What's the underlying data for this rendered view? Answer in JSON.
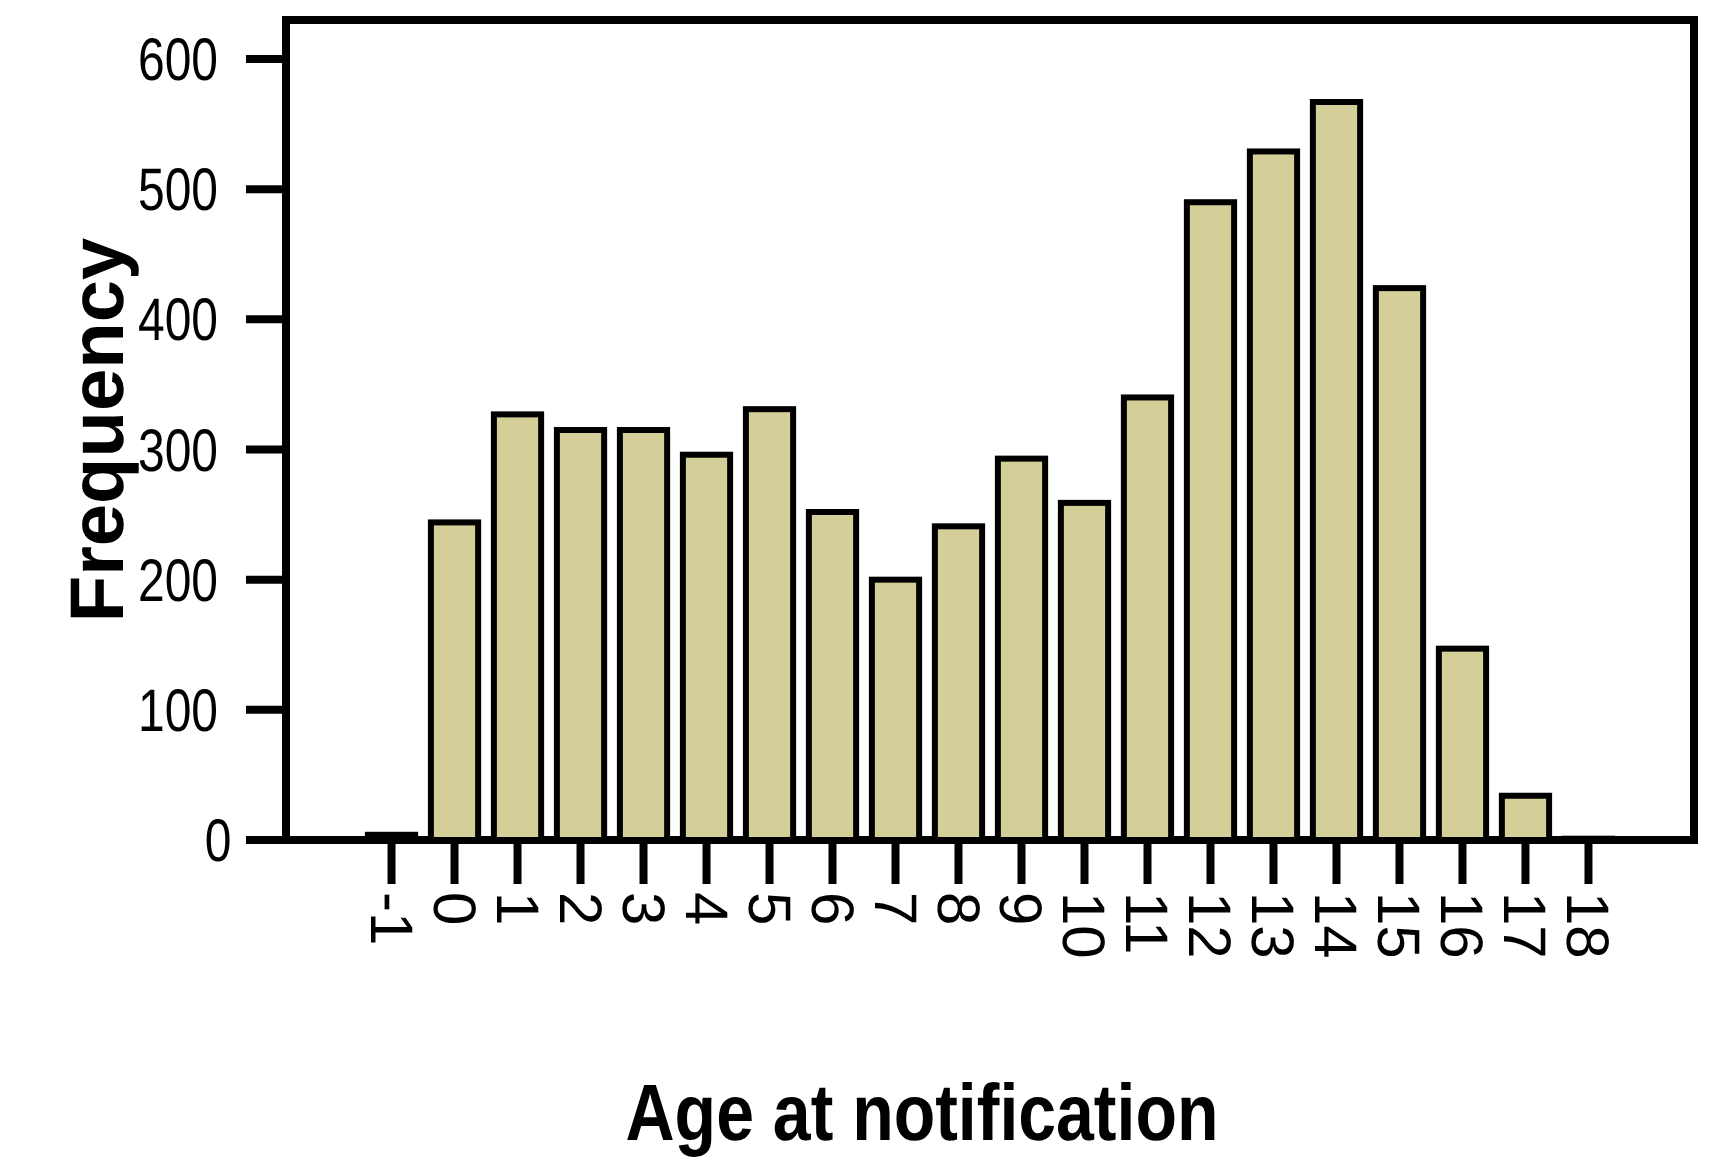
{
  "chart_data": {
    "type": "bar",
    "xlabel": "Age at notification",
    "ylabel": "Frequency",
    "categories": [
      "-1",
      "0",
      "1",
      "2",
      "3",
      "4",
      "5",
      "6",
      "7",
      "8",
      "9",
      "10",
      "11",
      "12",
      "13",
      "14",
      "15",
      "16",
      "17",
      "18"
    ],
    "values": [
      4,
      244,
      327,
      315,
      315,
      296,
      331,
      252,
      200,
      241,
      293,
      259,
      340,
      490,
      529,
      567,
      424,
      147,
      34,
      1
    ],
    "color": "#d4cf98",
    "ylim": [
      0,
      630
    ],
    "yticks": [
      0,
      100,
      200,
      300,
      400,
      500,
      600
    ],
    "grid": false
  }
}
